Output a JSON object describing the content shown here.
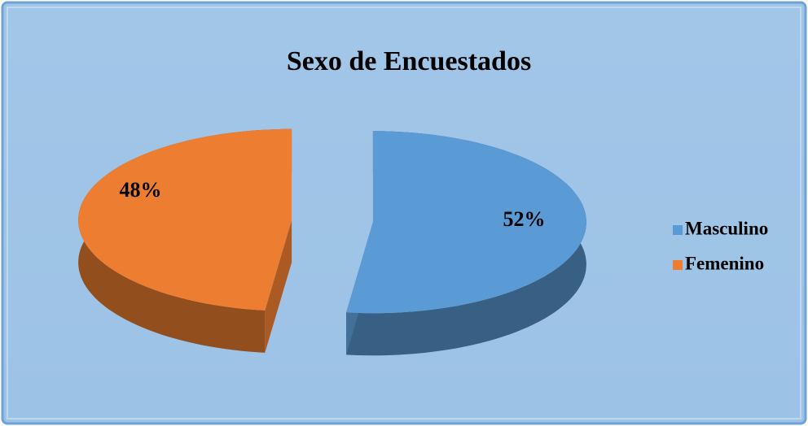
{
  "chart_data": {
    "type": "pie",
    "title": "Sexo de Encuestados",
    "categories": [
      "Masculino",
      "Femenino"
    ],
    "values": [
      52,
      48
    ],
    "value_labels": [
      "52%",
      "48%"
    ],
    "colors": [
      "#5b9bd5",
      "#ed7d31"
    ],
    "legend": "right"
  }
}
